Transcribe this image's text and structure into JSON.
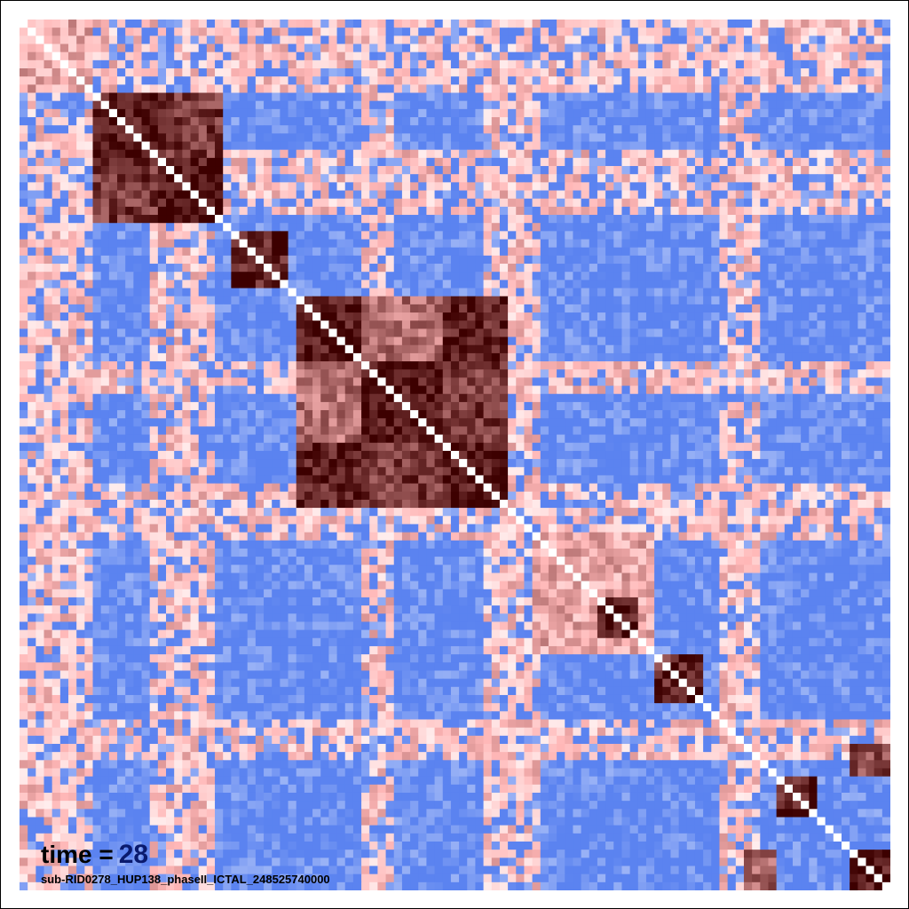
{
  "annotations": {
    "time_label": "time =",
    "time_value": "28",
    "file_label": "sub-RID0278_HUP138_phaseII_ICTAL_248525740000"
  },
  "colors": {
    "negative": "#5b83f0",
    "neutral": "#ffffff",
    "positive_light": "#ffb7b7",
    "positive_dark": "#3d0000",
    "diagonal": "#ffffff",
    "time_value": "#0a1a6e"
  },
  "chart_data": {
    "type": "heatmap",
    "title": "",
    "xlabel": "",
    "ylabel": "",
    "n_channels": 107,
    "value_range": [
      -1,
      1
    ],
    "colormap": "blue-white-red",
    "diagonal_value": 1,
    "grid": false,
    "legend": "none",
    "background_value": -0.45,
    "pink_row_bands": [
      [
        0,
        9
      ],
      [
        16,
        24
      ],
      [
        42,
        46
      ],
      [
        57,
        64
      ],
      [
        86,
        91
      ]
    ],
    "pink_col_bands": [
      [
        0,
        9
      ],
      [
        16,
        24
      ],
      [
        42,
        46
      ],
      [
        57,
        64
      ],
      [
        86,
        91
      ]
    ],
    "pink_band_value": 0.25,
    "blocks": [
      {
        "rows": [
          0,
          9
        ],
        "cols": [
          0,
          9
        ],
        "value": 0.35
      },
      {
        "rows": [
          9,
          25
        ],
        "cols": [
          9,
          25
        ],
        "value": 0.55
      },
      {
        "rows": [
          9,
          17
        ],
        "cols": [
          9,
          17
        ],
        "value": 0.9
      },
      {
        "rows": [
          17,
          25
        ],
        "cols": [
          17,
          25
        ],
        "value": 0.9
      },
      {
        "rows": [
          9,
          17
        ],
        "cols": [
          17,
          25
        ],
        "value": 0.75
      },
      {
        "rows": [
          17,
          25
        ],
        "cols": [
          9,
          17
        ],
        "value": 0.75
      },
      {
        "rows": [
          26,
          33
        ],
        "cols": [
          26,
          33
        ],
        "value": 0.85
      },
      {
        "rows": [
          34,
          60
        ],
        "cols": [
          34,
          60
        ],
        "value": 0.35
      },
      {
        "rows": [
          34,
          42
        ],
        "cols": [
          34,
          42
        ],
        "value": 0.9
      },
      {
        "rows": [
          42,
          52
        ],
        "cols": [
          42,
          52
        ],
        "value": 0.9
      },
      {
        "rows": [
          52,
          60
        ],
        "cols": [
          52,
          60
        ],
        "value": 0.9
      },
      {
        "rows": [
          34,
          42
        ],
        "cols": [
          52,
          60
        ],
        "value": 0.85
      },
      {
        "rows": [
          52,
          60
        ],
        "cols": [
          34,
          42
        ],
        "value": 0.85
      },
      {
        "rows": [
          42,
          52
        ],
        "cols": [
          52,
          60
        ],
        "value": 0.75
      },
      {
        "rows": [
          52,
          60
        ],
        "cols": [
          42,
          52
        ],
        "value": 0.75
      },
      {
        "rows": [
          42,
          52
        ],
        "cols": [
          34,
          42
        ],
        "value": 0.55
      },
      {
        "rows": [
          34,
          42
        ],
        "cols": [
          42,
          52
        ],
        "value": 0.55
      },
      {
        "rows": [
          63,
          78
        ],
        "cols": [
          63,
          78
        ],
        "value": 0.35
      },
      {
        "rows": [
          71,
          76
        ],
        "cols": [
          71,
          76
        ],
        "value": 0.9
      },
      {
        "rows": [
          78,
          84
        ],
        "cols": [
          78,
          84
        ],
        "value": 0.8
      },
      {
        "rows": [
          93,
          98
        ],
        "cols": [
          93,
          98
        ],
        "value": 0.85
      },
      {
        "rows": [
          102,
          107
        ],
        "cols": [
          102,
          107
        ],
        "value": 0.9
      },
      {
        "rows": [
          89,
          93
        ],
        "cols": [
          102,
          107
        ],
        "value": 0.7
      },
      {
        "rows": [
          102,
          107
        ],
        "cols": [
          89,
          93
        ],
        "value": 0.6
      }
    ]
  }
}
